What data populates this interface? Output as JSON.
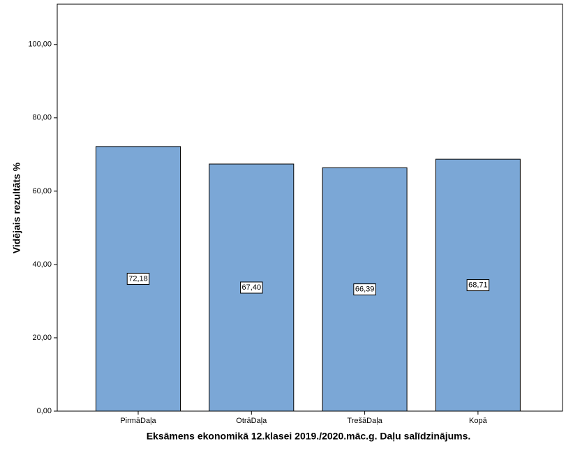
{
  "chart_data": {
    "type": "bar",
    "x_label": "Eksāmens ekonomikā 12.klasei 2019./2020.māc.g. Daļu salīdzinājums.",
    "y_label": "Vidējais rezultāts %",
    "categories": [
      "PirmāDaļa",
      "OtrāDaļa",
      "TrešāDaļa",
      "Kopā"
    ],
    "values": [
      72.18,
      67.4,
      66.39,
      68.71
    ],
    "value_labels": [
      "72,18",
      "67,40",
      "66,39",
      "68,71"
    ],
    "color": "#7ba7d6",
    "ylim": [
      0,
      111
    ],
    "yticks": [
      {
        "value": 0,
        "label": "0,00"
      },
      {
        "value": 20,
        "label": "20,00"
      },
      {
        "value": 40,
        "label": "40,00"
      },
      {
        "value": 60,
        "label": "60,00"
      },
      {
        "value": 80,
        "label": "80,00"
      },
      {
        "value": 100,
        "label": "100,00"
      }
    ]
  }
}
